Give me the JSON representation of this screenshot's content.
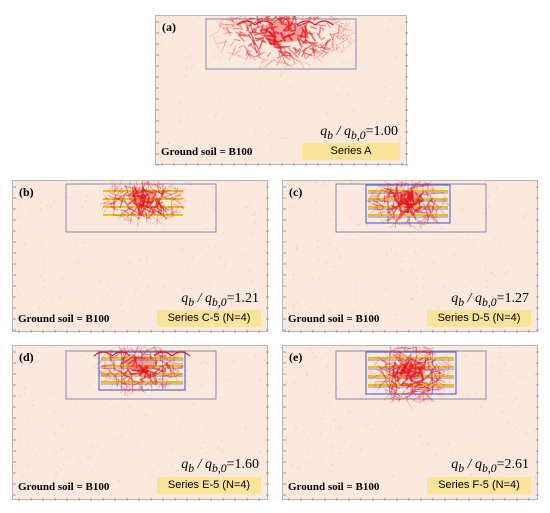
{
  "ground_label": "Ground soil = B100",
  "ratio_prefix": "q",
  "ratio_sub1": "b",
  "ratio_slash": " / q",
  "ratio_sub2": "b,0",
  "panels": [
    {
      "label": "(a)",
      "ratio": "=1.00",
      "series": "Series A"
    },
    {
      "label": "(b)",
      "ratio": "=1.21",
      "series": "Series C-5 (N=4)"
    },
    {
      "label": "(c)",
      "ratio": "=1.27",
      "series": "Series D-5 (N=4)"
    },
    {
      "label": "(d)",
      "ratio": "=1.60",
      "series": "Series E-5 (N=4)"
    },
    {
      "label": "(e)",
      "ratio": "=2.61",
      "series": "Series F-5 (N=4)"
    }
  ],
  "colors": {
    "soil": "#fbe9de",
    "force": "#e8141c",
    "reinforcement": "#f2c200",
    "block": "#5b6bd8",
    "outline": "#8a86b8"
  }
}
